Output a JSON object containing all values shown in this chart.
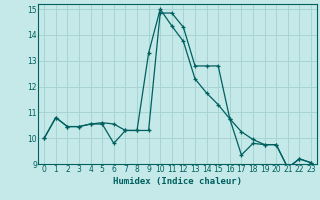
{
  "xlabel": "Humidex (Indice chaleur)",
  "bg_color": "#c5e8e8",
  "grid_color": "#a8d4d4",
  "line_color": "#006060",
  "marker_color": "#006060",
  "xlim": [
    -0.5,
    23.5
  ],
  "ylim": [
    9,
    15.2
  ],
  "xticks": [
    0,
    1,
    2,
    3,
    4,
    5,
    6,
    7,
    8,
    9,
    10,
    11,
    12,
    13,
    14,
    15,
    16,
    17,
    18,
    19,
    20,
    21,
    22,
    23
  ],
  "yticks": [
    9,
    10,
    11,
    12,
    13,
    14,
    15
  ],
  "series1_x": [
    0,
    1,
    2,
    3,
    4,
    5,
    6,
    7,
    8,
    9,
    10,
    11,
    12,
    13,
    14,
    15,
    16,
    17,
    18,
    19,
    20,
    21,
    22,
    23
  ],
  "series1_y": [
    10.0,
    10.8,
    10.45,
    10.45,
    10.55,
    10.55,
    9.8,
    10.3,
    10.3,
    10.3,
    14.85,
    14.85,
    14.3,
    12.8,
    12.8,
    12.8,
    10.75,
    9.35,
    9.8,
    9.75,
    9.75,
    8.85,
    9.2,
    9.05
  ],
  "series2_x": [
    0,
    1,
    2,
    3,
    4,
    5,
    6,
    7,
    8,
    9,
    10,
    11,
    12,
    13,
    14,
    15,
    16,
    17,
    18,
    19,
    20,
    21,
    22,
    23
  ],
  "series2_y": [
    10.0,
    10.8,
    10.45,
    10.45,
    10.55,
    10.6,
    10.55,
    10.3,
    10.3,
    13.3,
    15.0,
    14.35,
    13.75,
    12.3,
    11.75,
    11.3,
    10.75,
    10.25,
    9.95,
    9.75,
    9.75,
    8.85,
    9.2,
    9.05
  ]
}
